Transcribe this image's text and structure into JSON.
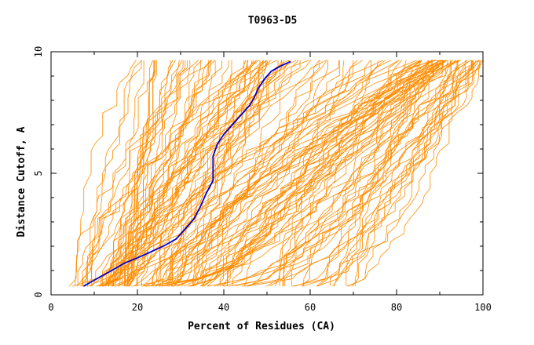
{
  "chart_data": {
    "type": "line",
    "title": "T0963-D5",
    "xlabel": "Percent of Residues (CA)",
    "ylabel": "Distance Cutoff, A",
    "xlim": [
      0,
      100
    ],
    "ylim": [
      0,
      10
    ],
    "x_ticks": [
      0,
      20,
      40,
      60,
      80,
      100
    ],
    "y_ticks": [
      0,
      5,
      10
    ],
    "grid": false,
    "legend": "none",
    "colors": {
      "background_series": "#ff8c00",
      "highlight_series": "#0000cd"
    },
    "highlight_series": {
      "x": [
        7.5,
        10,
        13,
        17,
        21,
        26,
        29,
        31,
        33,
        34.5,
        36,
        37.5,
        37.5,
        38.5,
        40,
        42,
        44,
        46,
        47,
        48,
        49.5,
        51,
        53,
        55.5
      ],
      "y": [
        0.35,
        0.6,
        0.9,
        1.3,
        1.6,
        2.0,
        2.3,
        2.7,
        3.1,
        3.6,
        4.2,
        4.7,
        5.7,
        6.2,
        6.6,
        7.0,
        7.4,
        7.8,
        8.1,
        8.5,
        8.9,
        9.2,
        9.4,
        9.6
      ]
    },
    "background_series_count": 150
  }
}
